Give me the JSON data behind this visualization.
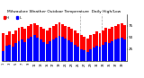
{
  "title": "Milwaukee Weather Outdoor Temperature  Daily High/Low",
  "title_fontsize": 3.2,
  "highs": [
    60,
    55,
    62,
    58,
    65,
    70,
    72,
    68,
    75,
    78,
    80,
    76,
    72,
    68,
    65,
    70,
    74,
    78,
    82,
    79,
    75,
    72,
    68,
    64,
    60,
    55,
    52,
    48,
    55,
    58,
    62,
    60,
    65,
    70,
    68,
    72,
    75,
    78,
    80,
    76
  ],
  "lows": [
    20,
    32,
    35,
    30,
    38,
    42,
    45,
    40,
    48,
    52,
    55,
    50,
    45,
    40,
    36,
    42,
    46,
    50,
    54,
    51,
    47,
    44,
    40,
    35,
    30,
    25,
    22,
    18,
    25,
    28,
    32,
    30,
    35,
    40,
    38,
    42,
    45,
    48,
    50,
    45
  ],
  "high_color": "#ff0000",
  "low_color": "#0000ff",
  "bg_color": "#ffffff",
  "grid_color": "#aaaaaa",
  "ylim": [
    0,
    100
  ],
  "yticks": [
    25,
    50,
    75
  ],
  "ytick_labels": [
    "25",
    "50",
    "75"
  ],
  "dashed_vlines": [
    24.5,
    31.5
  ],
  "ylabel_fontsize": 3.0,
  "xlabel_fontsize": 2.5,
  "legend_fontsize": 3.0,
  "n_bars": 40
}
